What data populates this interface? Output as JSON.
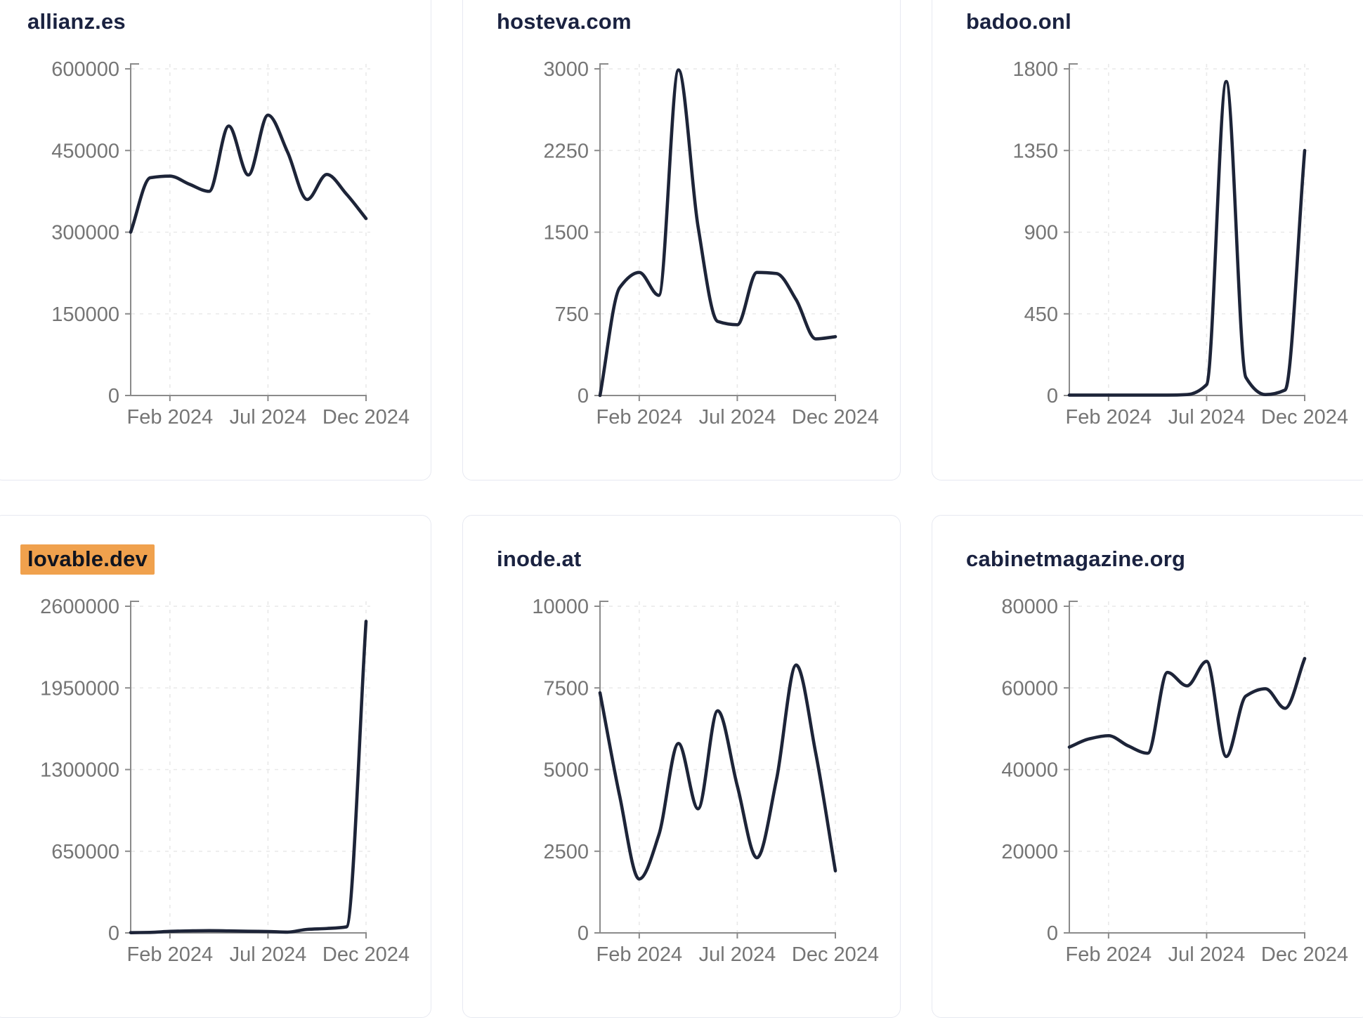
{
  "page": {
    "description": "Dashboard grid of six website traffic trend line charts, Dec 2023 - Dec 2024",
    "background_color": "#ffffff"
  },
  "style": {
    "line_color": "#1d2438",
    "line_width": 4.6,
    "title_color": "#1a2240",
    "highlight_color": "#f0a14d",
    "tick_label_color": "#757575",
    "axis_color": "#8b8b8b",
    "grid_color": "#e9e9e9",
    "card_border_color": "#e7e9f1"
  },
  "axis": {
    "x_tick_labels": [
      "Feb 2024",
      "Jul 2024",
      "Dec 2024"
    ],
    "x_tick_indices": [
      2,
      7,
      12
    ],
    "points_per_series": 13
  },
  "chart_data": [
    {
      "type": "line",
      "title": "allianz.es",
      "highlighted": false,
      "ylim": [
        0,
        600000
      ],
      "y_ticks": [
        0,
        150000,
        300000,
        450000,
        600000
      ],
      "x_tick_labels": [
        "Feb 2024",
        "Jul 2024",
        "Dec 2024"
      ],
      "values": [
        300000,
        400000,
        403000,
        388000,
        375000,
        495000,
        405000,
        515000,
        447000,
        360000,
        406000,
        370000,
        325000
      ]
    },
    {
      "type": "line",
      "title": "hosteva.com",
      "highlighted": false,
      "ylim": [
        0,
        3000
      ],
      "y_ticks": [
        0,
        750,
        1500,
        2250,
        3000
      ],
      "x_tick_labels": [
        "Feb 2024",
        "Jul 2024",
        "Dec 2024"
      ],
      "values": [
        0,
        990,
        1130,
        920,
        2990,
        1550,
        680,
        650,
        1130,
        1120,
        880,
        520,
        540
      ]
    },
    {
      "type": "line",
      "title": "badoo.onl",
      "highlighted": false,
      "ylim": [
        0,
        1800
      ],
      "y_ticks": [
        0,
        450,
        900,
        1350,
        1800
      ],
      "x_tick_labels": [
        "Feb 2024",
        "Jul 2024",
        "Dec 2024"
      ],
      "values": [
        2,
        2,
        2,
        2,
        2,
        2,
        5,
        60,
        1730,
        100,
        5,
        30,
        1350
      ]
    },
    {
      "type": "line",
      "title": "lovable.dev",
      "highlighted": true,
      "ylim": [
        0,
        2600000
      ],
      "y_ticks": [
        0,
        650000,
        1300000,
        1950000,
        2600000
      ],
      "x_tick_labels": [
        "Feb 2024",
        "Jul 2024",
        "Dec 2024"
      ],
      "values": [
        2000,
        4000,
        12000,
        16000,
        18000,
        16000,
        13000,
        11000,
        6000,
        28000,
        35000,
        48000,
        2480000
      ]
    },
    {
      "type": "line",
      "title": "inode.at",
      "highlighted": false,
      "ylim": [
        0,
        10000
      ],
      "y_ticks": [
        0,
        2500,
        5000,
        7500,
        10000
      ],
      "x_tick_labels": [
        "Feb 2024",
        "Jul 2024",
        "Dec 2024"
      ],
      "values": [
        7350,
        4200,
        1650,
        3000,
        5800,
        3800,
        6800,
        4500,
        2300,
        4700,
        8200,
        5500,
        1900
      ]
    },
    {
      "type": "line",
      "title": "cabinetmagazine.org",
      "highlighted": false,
      "ylim": [
        0,
        80000
      ],
      "y_ticks": [
        0,
        20000,
        40000,
        60000,
        80000
      ],
      "x_tick_labels": [
        "Feb 2024",
        "Jul 2024",
        "Dec 2024"
      ],
      "values": [
        45500,
        47500,
        48300,
        45800,
        44000,
        63800,
        60500,
        66500,
        43200,
        58000,
        59800,
        55000,
        67200
      ]
    }
  ]
}
